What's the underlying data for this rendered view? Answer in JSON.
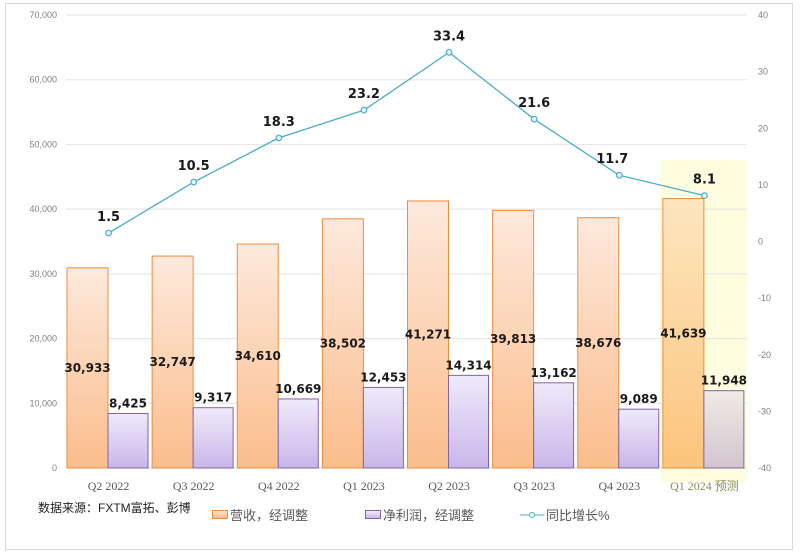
{
  "chart_data": {
    "type": "bar",
    "categories": [
      "Q2 2022",
      "Q3 2022",
      "Q4 2022",
      "Q1 2023",
      "Q2 2023",
      "Q3 2023",
      "Q4 2023",
      "Q1 2024 预测"
    ],
    "highlight_category": "Q1 2024 预测",
    "series": [
      {
        "name": "营收，经调整",
        "type": "bar",
        "axis": "left",
        "values": [
          30933,
          32747,
          34610,
          38502,
          41271,
          39813,
          38676,
          41639
        ],
        "labels": [
          "30,933",
          "32,747",
          "34,610",
          "38,502",
          "41,271",
          "39,813",
          "38,676",
          "41,639"
        ],
        "color": "#f7a35c"
      },
      {
        "name": "净利润，经调整",
        "type": "bar",
        "axis": "left",
        "values": [
          8425,
          9317,
          10669,
          12453,
          14314,
          13162,
          9089,
          11948
        ],
        "labels": [
          "8,425",
          "9,317",
          "10,669",
          "12,453",
          "14,314",
          "13,162",
          "9,089",
          "11,948"
        ],
        "color": "#b4a0dc"
      },
      {
        "name": "同比增长%",
        "type": "line",
        "axis": "right",
        "values": [
          1.5,
          10.5,
          18.3,
          23.2,
          33.4,
          21.6,
          11.7,
          8.1
        ],
        "labels": [
          "1.5",
          "10.5",
          "18.3",
          "23.2",
          "33.4",
          "21.6",
          "11.7",
          "8.1"
        ],
        "color": "#4bacc6"
      }
    ],
    "left_axis": {
      "range": [
        0,
        70000
      ],
      "ticks": [
        "0",
        "10,000",
        "20,000",
        "30,000",
        "40,000",
        "50,000",
        "60,000",
        "70,000"
      ]
    },
    "right_axis": {
      "range": [
        -40,
        40
      ],
      "ticks": [
        "-40",
        "-30",
        "-20",
        "-10",
        "0",
        "10",
        "20",
        "30",
        "40"
      ]
    },
    "grid": true,
    "legend": "bottom",
    "highlight_color": "#fffde0"
  },
  "source_note": "数据来源：FXTM富拓、彭博"
}
